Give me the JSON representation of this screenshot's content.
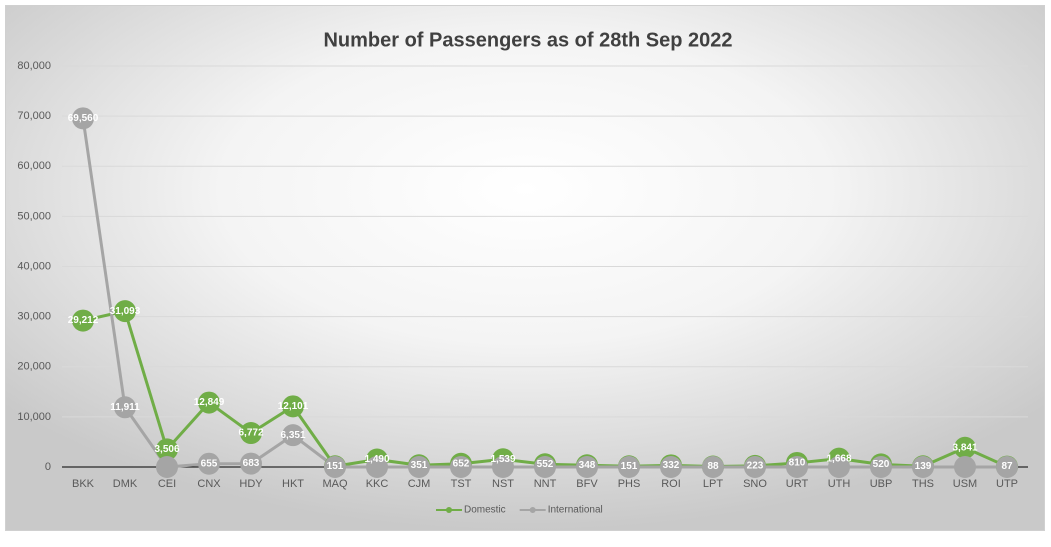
{
  "chart_data": {
    "type": "line",
    "title": "Number of Passengers as of 28th Sep 2022",
    "categories": [
      "BKK",
      "DMK",
      "CEI",
      "CNX",
      "HDY",
      "HKT",
      "MAQ",
      "KKC",
      "CJM",
      "TST",
      "NST",
      "NNT",
      "BFV",
      "PHS",
      "ROI",
      "LPT",
      "SNO",
      "URT",
      "UTH",
      "UBP",
      "THS",
      "USM",
      "UTP"
    ],
    "series": [
      {
        "name": "Domestic",
        "color": "#70ad47",
        "values": [
          29212,
          31093,
          3506,
          12849,
          6772,
          12101,
          151,
          1490,
          351,
          652,
          1539,
          552,
          348,
          151,
          332,
          88,
          223,
          810,
          1668,
          520,
          139,
          3841,
          87
        ],
        "value_labels": [
          "29,212",
          "31,093",
          "3,506",
          "12,849",
          "6,772",
          "12,101",
          "151",
          "1,490",
          "351",
          "652",
          "1,539",
          "552",
          "348",
          "151",
          "332",
          "88",
          "223",
          "810",
          "1,668",
          "520",
          "139",
          "3,841",
          "87"
        ]
      },
      {
        "name": "International",
        "color": "#a5a5a5",
        "values": [
          69560,
          11911,
          0,
          655,
          683,
          6351,
          0,
          0,
          0,
          0,
          0,
          0,
          0,
          0,
          0,
          0,
          0,
          0,
          0,
          0,
          0,
          0,
          0
        ],
        "value_labels": [
          "69,560",
          "11,911",
          null,
          "655",
          "683",
          "6,351",
          null,
          null,
          null,
          null,
          null,
          null,
          null,
          null,
          null,
          null,
          null,
          null,
          null,
          null,
          null,
          null,
          null
        ]
      }
    ],
    "ylim": [
      0,
      80000
    ],
    "yticks": [
      0,
      {
        "value": 10000,
        "label": "10,000"
      },
      {
        "value": 20000,
        "label": "20,000"
      },
      {
        "value": 30000,
        "label": "30,000"
      },
      {
        "value": 40000,
        "label": "40,000"
      },
      {
        "value": 50000,
        "label": "50,000"
      },
      {
        "value": 60000,
        "label": "60,000"
      },
      {
        "value": 70000,
        "label": "70,000"
      },
      {
        "value": 80000,
        "label": "80,000"
      }
    ],
    "grid": true,
    "legend": "bottom"
  }
}
